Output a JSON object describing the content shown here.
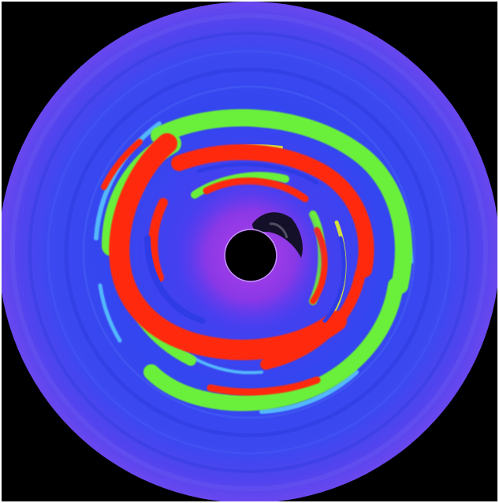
{
  "image": {
    "subject": "accretion-disk-simulation",
    "palette": {
      "background": "#000000",
      "outer_disk": "#5a46ee",
      "disk_mid": "#3a4cf0",
      "disk_inner": "#2f3ce6",
      "cyan": "#59d2ff",
      "green": "#6cf03a",
      "red": "#ff2a10",
      "yellow": "#e6f22a",
      "core_violet": "#9b3ae6",
      "hole": "#000000"
    }
  }
}
